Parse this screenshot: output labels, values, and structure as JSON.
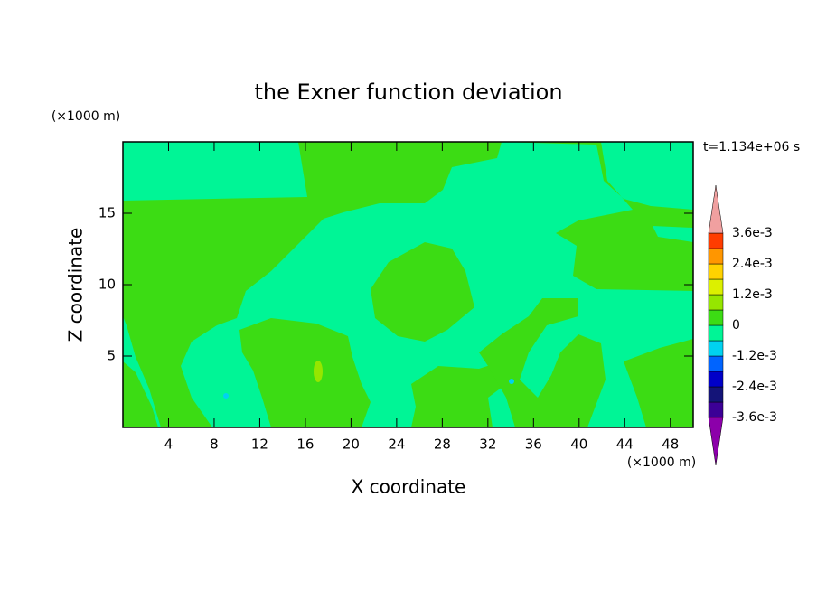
{
  "chart_data": {
    "type": "contour",
    "title": "the Exner function deviation",
    "x_label": "X coordinate",
    "y_label": "Z coordinate",
    "x_unit": "(×1000 m)",
    "y_unit": "(×1000 m)",
    "annotation": "t=1.134e+06 s",
    "xlim": [
      0,
      50
    ],
    "ylim": [
      0,
      20
    ],
    "xticks": [
      4,
      8,
      12,
      16,
      20,
      24,
      28,
      32,
      36,
      40,
      44,
      48
    ],
    "yticks": [
      5,
      10,
      15
    ],
    "colorbar": {
      "levels": [
        -0.0036,
        -0.003,
        -0.0024,
        -0.0018,
        -0.0012,
        -0.0006,
        0,
        0.0006,
        0.0012,
        0.0018,
        0.0024,
        0.003,
        0.0036
      ],
      "colors": [
        "#8c00aa",
        "#3c0096",
        "#141478",
        "#0000c8",
        "#0064ff",
        "#00d2f0",
        "#00f596",
        "#3cdc14",
        "#96e600",
        "#dcf000",
        "#ffd200",
        "#ff9600",
        "#ff3c00",
        "#f0a0a0"
      ],
      "ticks": [
        {
          "value": -0.0036,
          "label": "-3.6e-3"
        },
        {
          "value": -0.0024,
          "label": "-2.4e-3"
        },
        {
          "value": -0.0012,
          "label": "-1.2e-3"
        },
        0,
        {
          "value": 0.0012,
          "label": "1.2e-3"
        },
        {
          "value": 0.0024,
          "label": "2.4e-3"
        },
        {
          "value": 0.0036,
          "label": "3.6e-3"
        }
      ]
    }
  }
}
